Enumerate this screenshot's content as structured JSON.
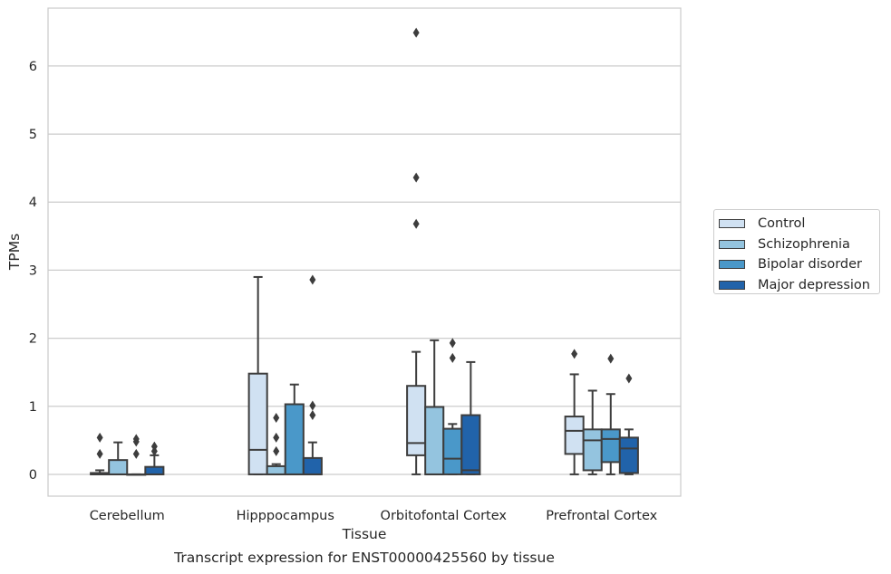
{
  "caption": "Transcript expression for ENST00000425560 by tissue",
  "chart_data": {
    "type": "box",
    "xlabel": "Tissue",
    "ylabel": "TPMs",
    "ylim": [
      -0.32,
      6.85
    ],
    "yticks": [
      0,
      1,
      2,
      3,
      4,
      5,
      6
    ],
    "grid": "horizontal",
    "legend_position": "right",
    "categories": [
      "Cerebellum",
      "Hipppocampus",
      "Orbitofontal Cortex",
      "Prefrontal Cortex"
    ],
    "series": [
      {
        "name": "Control",
        "color": "#d0e1f2",
        "boxes": [
          {
            "whislo": 0.0,
            "q1": 0.0,
            "med": 0.0,
            "q3": 0.02,
            "whishi": 0.06,
            "fliers": [
              0.3,
              0.54
            ]
          },
          {
            "whislo": 0.0,
            "q1": 0.0,
            "med": 0.36,
            "q3": 1.48,
            "whishi": 2.9,
            "fliers": []
          },
          {
            "whislo": 0.0,
            "q1": 0.28,
            "med": 0.46,
            "q3": 1.3,
            "whishi": 1.8,
            "fliers": [
              3.68,
              4.36,
              6.49
            ]
          },
          {
            "whislo": 0.0,
            "q1": 0.3,
            "med": 0.64,
            "q3": 0.85,
            "whishi": 1.47,
            "fliers": [
              1.77
            ]
          }
        ]
      },
      {
        "name": "Schizophrenia",
        "color": "#94c4df",
        "boxes": [
          {
            "whislo": 0.0,
            "q1": 0.0,
            "med": 0.0,
            "q3": 0.21,
            "whishi": 0.47,
            "fliers": []
          },
          {
            "whislo": 0.0,
            "q1": 0.0,
            "med": 0.0,
            "q3": 0.12,
            "whishi": 0.15,
            "fliers": [
              0.34,
              0.54,
              0.83
            ]
          },
          {
            "whislo": 0.0,
            "q1": 0.0,
            "med": 0.0,
            "q3": 0.99,
            "whishi": 1.97,
            "fliers": []
          },
          {
            "whislo": 0.0,
            "q1": 0.06,
            "med": 0.5,
            "q3": 0.66,
            "whishi": 1.23,
            "fliers": []
          }
        ]
      },
      {
        "name": "Bipolar disorder",
        "color": "#4a98c9",
        "boxes": [
          {
            "whislo": 0.0,
            "q1": 0.0,
            "med": 0.0,
            "q3": 0.0,
            "whishi": 0.0,
            "fliers": [
              0.3,
              0.48,
              0.52
            ]
          },
          {
            "whislo": 0.0,
            "q1": 0.0,
            "med": 0.0,
            "q3": 1.03,
            "whishi": 1.32,
            "fliers": []
          },
          {
            "whislo": 0.0,
            "q1": 0.0,
            "med": 0.23,
            "q3": 0.67,
            "whishi": 0.74,
            "fliers": [
              1.71,
              1.93
            ]
          },
          {
            "whislo": 0.0,
            "q1": 0.18,
            "med": 0.52,
            "q3": 0.66,
            "whishi": 1.18,
            "fliers": [
              1.7
            ]
          }
        ]
      },
      {
        "name": "Major depression",
        "color": "#2163aa",
        "boxes": [
          {
            "whislo": 0.0,
            "q1": 0.0,
            "med": 0.0,
            "q3": 0.11,
            "whishi": 0.28,
            "fliers": [
              0.34,
              0.41
            ]
          },
          {
            "whislo": 0.0,
            "q1": 0.0,
            "med": 0.0,
            "q3": 0.24,
            "whishi": 0.47,
            "fliers": [
              0.87,
              1.01,
              2.86
            ]
          },
          {
            "whislo": 0.0,
            "q1": 0.0,
            "med": 0.06,
            "q3": 0.87,
            "whishi": 1.65,
            "fliers": []
          },
          {
            "whislo": 0.0,
            "q1": 0.02,
            "med": 0.38,
            "q3": 0.54,
            "whishi": 0.66,
            "fliers": [
              1.41
            ]
          }
        ]
      }
    ]
  }
}
